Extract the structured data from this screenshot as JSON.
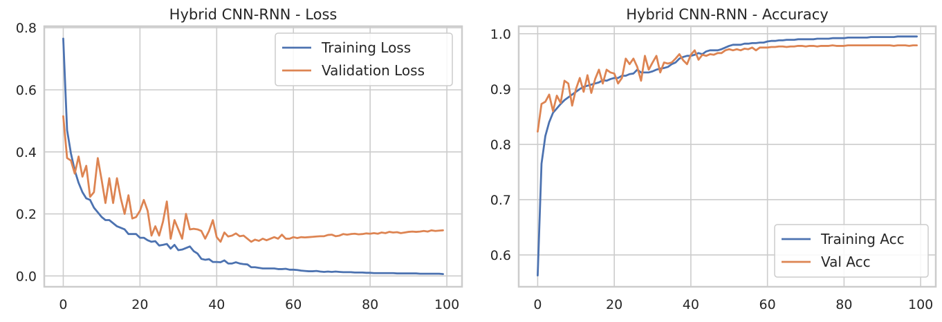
{
  "chart_data": [
    {
      "type": "line",
      "title": "Hybrid CNN-RNN - Loss",
      "xlabel": "",
      "ylabel": "",
      "xlim": [
        -4.95,
        103.95
      ],
      "ylim": [
        -0.035,
        0.805
      ],
      "xticks": [
        0,
        20,
        40,
        60,
        80,
        100
      ],
      "xtick_labels": [
        "0",
        "20",
        "40",
        "60",
        "80",
        "100"
      ],
      "yticks": [
        0.0,
        0.2,
        0.4,
        0.6,
        0.8
      ],
      "ytick_labels": [
        "0.0",
        "0.2",
        "0.4",
        "0.6",
        "0.8"
      ],
      "grid": true,
      "legend_position": "top-right",
      "series": [
        {
          "name": "Training Loss",
          "color": "#4c72b0",
          "values": [
            0.765,
            0.47,
            0.395,
            0.34,
            0.3,
            0.27,
            0.25,
            0.245,
            0.22,
            0.205,
            0.19,
            0.18,
            0.18,
            0.17,
            0.16,
            0.155,
            0.15,
            0.135,
            0.135,
            0.135,
            0.123,
            0.123,
            0.115,
            0.11,
            0.112,
            0.098,
            0.1,
            0.103,
            0.088,
            0.1,
            0.083,
            0.085,
            0.09,
            0.095,
            0.08,
            0.072,
            0.055,
            0.052,
            0.054,
            0.045,
            0.045,
            0.044,
            0.05,
            0.04,
            0.04,
            0.044,
            0.04,
            0.038,
            0.037,
            0.028,
            0.028,
            0.026,
            0.024,
            0.024,
            0.024,
            0.024,
            0.022,
            0.022,
            0.023,
            0.02,
            0.02,
            0.019,
            0.017,
            0.016,
            0.015,
            0.015,
            0.016,
            0.014,
            0.013,
            0.014,
            0.013,
            0.014,
            0.013,
            0.012,
            0.012,
            0.012,
            0.011,
            0.011,
            0.011,
            0.01,
            0.01,
            0.009,
            0.009,
            0.009,
            0.009,
            0.009,
            0.009,
            0.008,
            0.008,
            0.008,
            0.008,
            0.008,
            0.008,
            0.007,
            0.007,
            0.007,
            0.007,
            0.007,
            0.007,
            0.006
          ]
        },
        {
          "name": "Validation Loss",
          "color": "#dd8452",
          "values": [
            0.515,
            0.38,
            0.372,
            0.33,
            0.385,
            0.32,
            0.355,
            0.255,
            0.27,
            0.38,
            0.31,
            0.235,
            0.315,
            0.235,
            0.315,
            0.25,
            0.2,
            0.26,
            0.185,
            0.19,
            0.21,
            0.245,
            0.21,
            0.13,
            0.16,
            0.13,
            0.175,
            0.24,
            0.12,
            0.18,
            0.15,
            0.12,
            0.2,
            0.15,
            0.152,
            0.15,
            0.145,
            0.12,
            0.145,
            0.18,
            0.125,
            0.11,
            0.14,
            0.127,
            0.13,
            0.137,
            0.128,
            0.13,
            0.12,
            0.11,
            0.117,
            0.113,
            0.12,
            0.115,
            0.12,
            0.125,
            0.12,
            0.133,
            0.12,
            0.12,
            0.125,
            0.122,
            0.125,
            0.124,
            0.125,
            0.126,
            0.127,
            0.128,
            0.128,
            0.132,
            0.133,
            0.128,
            0.13,
            0.135,
            0.133,
            0.135,
            0.136,
            0.134,
            0.135,
            0.137,
            0.136,
            0.138,
            0.136,
            0.14,
            0.138,
            0.142,
            0.14,
            0.141,
            0.138,
            0.14,
            0.142,
            0.143,
            0.142,
            0.143,
            0.145,
            0.143,
            0.147,
            0.145,
            0.146,
            0.147
          ]
        }
      ]
    },
    {
      "type": "line",
      "title": "Hybrid CNN-RNN - Accuracy",
      "xlabel": "",
      "ylabel": "",
      "xlim": [
        -4.95,
        103.95
      ],
      "ylim": [
        0.5425,
        1.0135
      ],
      "xticks": [
        0,
        20,
        40,
        60,
        80,
        100
      ],
      "xtick_labels": [
        "0",
        "20",
        "40",
        "60",
        "80",
        "100"
      ],
      "yticks": [
        0.6,
        0.7,
        0.8,
        0.9,
        1.0
      ],
      "ytick_labels": [
        "0.6",
        "0.7",
        "0.8",
        "0.9",
        "1.0"
      ],
      "grid": true,
      "legend_position": "bottom-right",
      "series": [
        {
          "name": "Training Acc",
          "color": "#4c72b0",
          "values": [
            0.563,
            0.765,
            0.815,
            0.84,
            0.857,
            0.865,
            0.873,
            0.88,
            0.885,
            0.89,
            0.895,
            0.9,
            0.904,
            0.906,
            0.908,
            0.91,
            0.912,
            0.916,
            0.915,
            0.918,
            0.92,
            0.92,
            0.924,
            0.924,
            0.927,
            0.928,
            0.935,
            0.93,
            0.93,
            0.93,
            0.932,
            0.935,
            0.937,
            0.938,
            0.94,
            0.945,
            0.948,
            0.955,
            0.958,
            0.96,
            0.96,
            0.962,
            0.965,
            0.963,
            0.968,
            0.97,
            0.97,
            0.97,
            0.972,
            0.975,
            0.978,
            0.98,
            0.98,
            0.98,
            0.982,
            0.982,
            0.983,
            0.983,
            0.984,
            0.984,
            0.986,
            0.987,
            0.987,
            0.988,
            0.988,
            0.989,
            0.989,
            0.989,
            0.99,
            0.99,
            0.99,
            0.99,
            0.99,
            0.991,
            0.991,
            0.991,
            0.991,
            0.992,
            0.992,
            0.992,
            0.992,
            0.993,
            0.993,
            0.993,
            0.993,
            0.993,
            0.993,
            0.994,
            0.994,
            0.994,
            0.994,
            0.994,
            0.994,
            0.994,
            0.995,
            0.995,
            0.995,
            0.995,
            0.995,
            0.995
          ]
        },
        {
          "name": "Val Acc",
          "color": "#dd8452",
          "values": [
            0.823,
            0.873,
            0.877,
            0.89,
            0.86,
            0.888,
            0.875,
            0.915,
            0.91,
            0.87,
            0.9,
            0.92,
            0.895,
            0.925,
            0.893,
            0.918,
            0.935,
            0.91,
            0.935,
            0.93,
            0.928,
            0.91,
            0.92,
            0.955,
            0.945,
            0.955,
            0.94,
            0.915,
            0.96,
            0.935,
            0.948,
            0.96,
            0.93,
            0.948,
            0.946,
            0.948,
            0.955,
            0.963,
            0.952,
            0.945,
            0.962,
            0.97,
            0.953,
            0.962,
            0.96,
            0.963,
            0.962,
            0.965,
            0.965,
            0.97,
            0.972,
            0.97,
            0.972,
            0.97,
            0.973,
            0.972,
            0.975,
            0.97,
            0.975,
            0.975,
            0.975,
            0.976,
            0.976,
            0.977,
            0.977,
            0.976,
            0.977,
            0.977,
            0.978,
            0.978,
            0.977,
            0.978,
            0.978,
            0.977,
            0.978,
            0.978,
            0.978,
            0.979,
            0.978,
            0.978,
            0.978,
            0.979,
            0.979,
            0.979,
            0.979,
            0.979,
            0.979,
            0.979,
            0.979,
            0.979,
            0.979,
            0.979,
            0.979,
            0.978,
            0.979,
            0.979,
            0.979,
            0.978,
            0.979,
            0.979
          ]
        }
      ]
    }
  ]
}
